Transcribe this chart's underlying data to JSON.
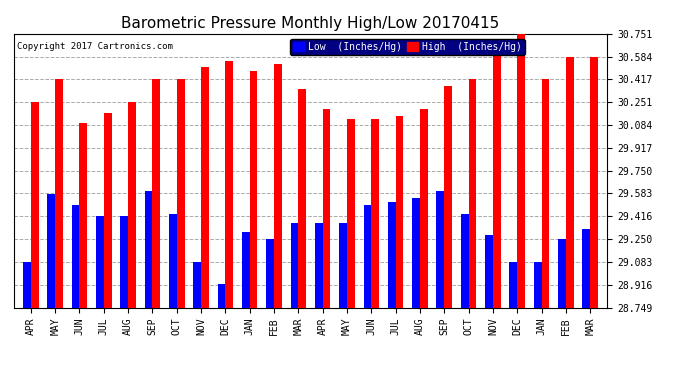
{
  "title": "Barometric Pressure Monthly High/Low 20170415",
  "copyright": "Copyright 2017 Cartronics.com",
  "legend_low": "Low  (Inches/Hg)",
  "legend_high": "High  (Inches/Hg)",
  "months": [
    "APR",
    "MAY",
    "JUN",
    "JUL",
    "AUG",
    "SEP",
    "OCT",
    "NOV",
    "DEC",
    "JAN",
    "FEB",
    "MAR",
    "APR",
    "MAY",
    "JUN",
    "JUL",
    "AUG",
    "SEP",
    "OCT",
    "NOV",
    "DEC",
    "JAN",
    "FEB",
    "MAR"
  ],
  "high_values": [
    30.25,
    30.42,
    30.1,
    30.17,
    30.25,
    30.42,
    30.42,
    30.51,
    30.55,
    30.48,
    30.53,
    30.35,
    30.2,
    30.13,
    30.13,
    30.15,
    30.2,
    30.37,
    30.42,
    30.65,
    30.75,
    30.42,
    30.58,
    30.58
  ],
  "low_values": [
    29.08,
    29.58,
    29.5,
    29.42,
    29.42,
    29.6,
    29.43,
    29.08,
    28.92,
    29.3,
    29.25,
    29.37,
    29.37,
    29.37,
    29.5,
    29.52,
    29.55,
    29.6,
    29.43,
    29.28,
    29.08,
    29.08,
    29.25,
    29.32
  ],
  "ylim_min": 28.749,
  "ylim_max": 30.751,
  "yticks": [
    28.749,
    28.916,
    29.083,
    29.25,
    29.416,
    29.583,
    29.75,
    29.917,
    30.084,
    30.251,
    30.417,
    30.584,
    30.751
  ],
  "ytick_labels": [
    "28.749",
    "28.916",
    "29.083",
    "29.250",
    "29.416",
    "29.583",
    "29.750",
    "29.917",
    "30.084",
    "30.251",
    "30.417",
    "30.584",
    "30.751"
  ],
  "bar_color_low": "#0000ff",
  "bar_color_high": "#ff0000",
  "bg_color": "#ffffff",
  "grid_color": "#aaaaaa",
  "title_fontsize": 11,
  "axis_fontsize": 7,
  "legend_fontsize": 7.5
}
